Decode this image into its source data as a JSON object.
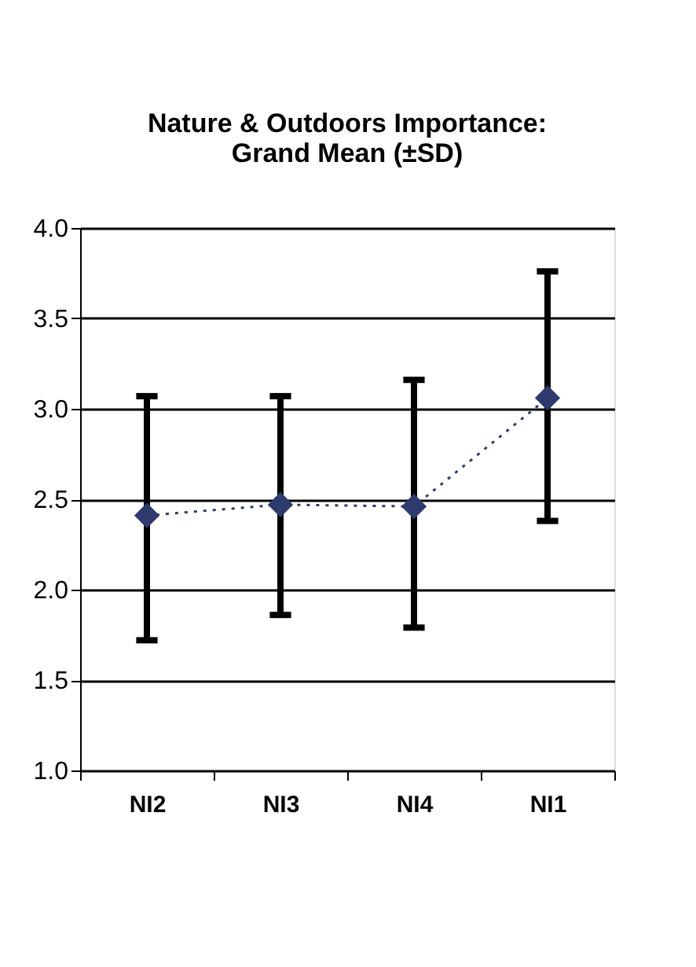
{
  "chart_data": {
    "type": "line",
    "title": [
      "Nature & Outdoors Importance:",
      "Grand Mean (±SD)"
    ],
    "categories": [
      "NI2",
      "NI3",
      "NI4",
      "NI1"
    ],
    "series": [
      {
        "color": "#2e3a6e",
        "values": [
          2.41,
          2.47,
          2.46,
          3.06
        ],
        "errors": [
          [
            1.72,
            3.07
          ],
          [
            1.86,
            3.07
          ],
          [
            1.79,
            3.16
          ],
          [
            2.38,
            3.76
          ]
        ]
      }
    ],
    "ylim": [
      1.0,
      4.0
    ],
    "yticks": [
      {
        "value": 1.0,
        "label": "1.0"
      },
      {
        "value": 1.5,
        "label": "1.5"
      },
      {
        "value": 2.0,
        "label": "2.0"
      },
      {
        "value": 2.5,
        "label": "2.5"
      },
      {
        "value": 3.0,
        "label": "3.0"
      },
      {
        "value": 3.5,
        "label": "3.5"
      },
      {
        "value": 4.0,
        "label": "4.0"
      }
    ],
    "grid": "y",
    "marker": "diamond",
    "line_style": "dotted"
  }
}
